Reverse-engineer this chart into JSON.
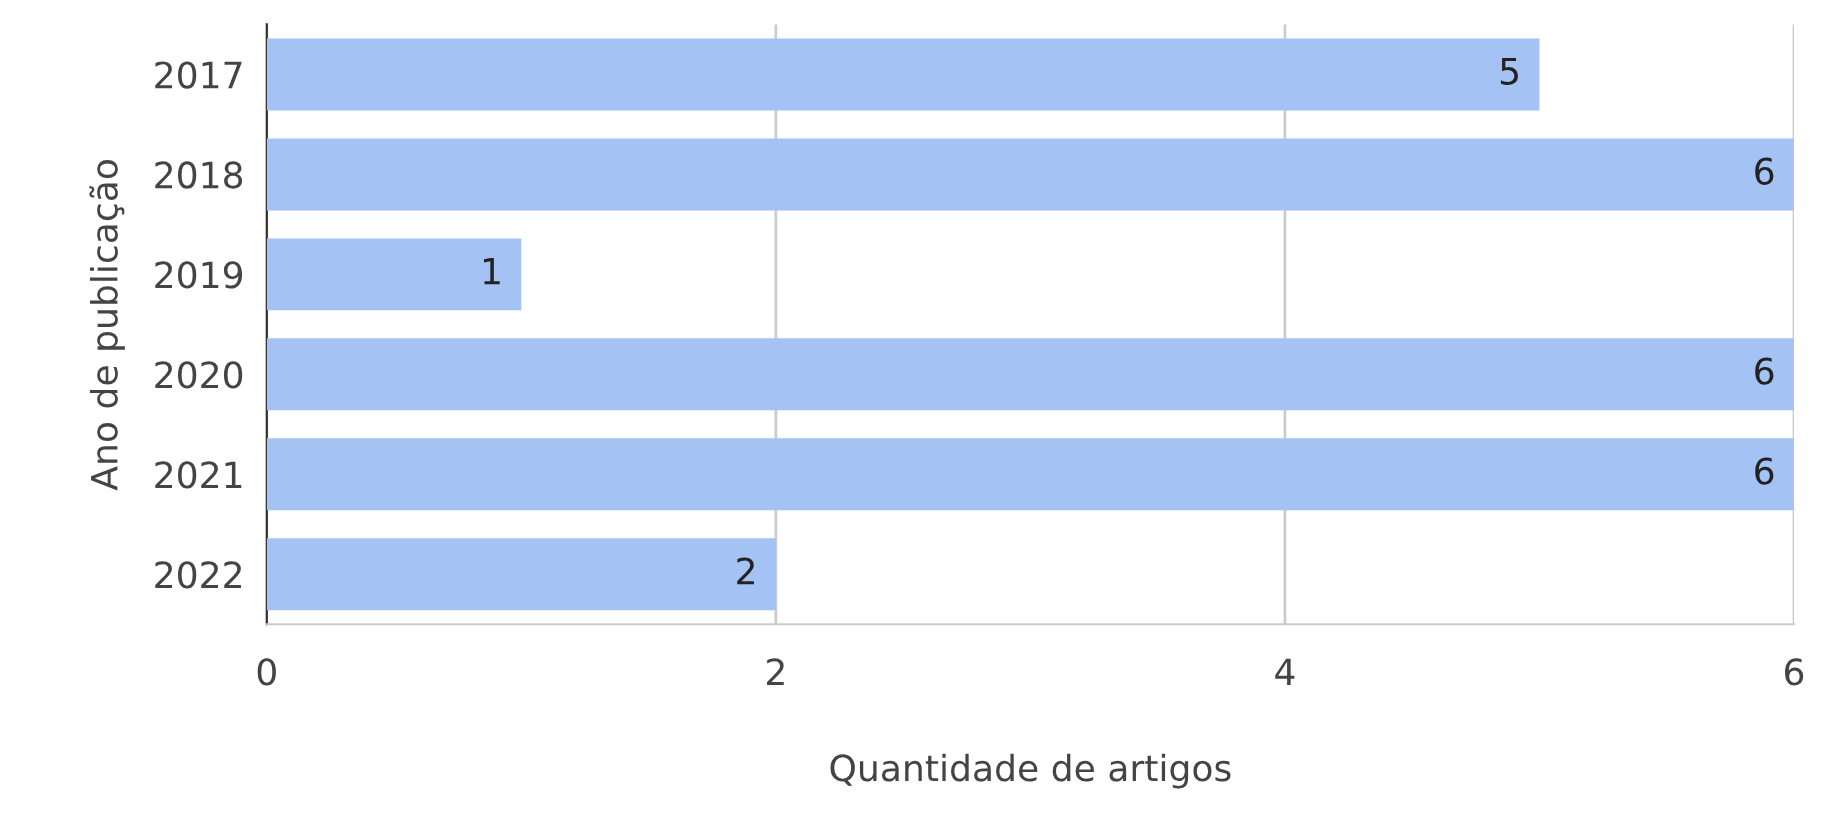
{
  "chart_data": {
    "type": "bar",
    "orientation": "horizontal",
    "xlabel": "Quantidade de artigos",
    "ylabel": "Ano de publicação",
    "categories": [
      "2017",
      "2018",
      "2019",
      "2020",
      "2021",
      "2022"
    ],
    "values": [
      5,
      6,
      1,
      6,
      6,
      2
    ],
    "color": "#a4c2f4",
    "xlim": [
      0,
      6
    ],
    "xticks": [
      0,
      2,
      4,
      6
    ],
    "grid": "x",
    "data_labels": true
  }
}
